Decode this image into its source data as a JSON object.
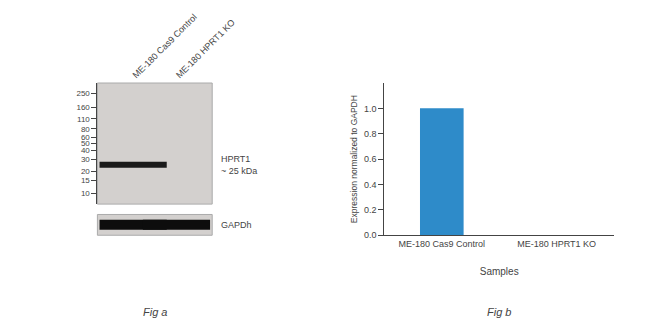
{
  "chart_data": [
    {
      "type": "western_blot",
      "title": "Fig a",
      "categories": [
        "ME-180 Cas9 Control",
        "ME-180 HPRT1 KO"
      ],
      "log": "y",
      "ylim": [
        7,
        350
      ],
      "yticks": [
        250,
        160,
        110,
        80,
        60,
        50,
        40,
        30,
        20,
        15,
        10
      ],
      "color": "#d3d0ce",
      "series": [
        {
          "name": "HPRT1\n~ 25 kDa",
          "values": [
            25,
            null
          ],
          "color": "#1a1a1a"
        }
      ],
      "loading_control": {
        "name": "GAPDh",
        "present": [
          true,
          true
        ],
        "color": "#0d0d0d"
      }
    },
    {
      "type": "bar",
      "title": "Fig b",
      "categories": [
        "ME-180 Cas9 Control",
        "ME-180 HPRT1 KO"
      ],
      "values": [
        1.0,
        0.0
      ],
      "color": "#2e8bc9",
      "xlabel": "Samples",
      "ylabel": "Expression normalized to GAPDH",
      "ylim": [
        0,
        1.2
      ],
      "yticks": [
        {
          "value": 0,
          "label": "0.0"
        },
        0.2,
        0.4,
        0.6,
        0.8,
        {
          "value": 1.0,
          "label": "1.0"
        }
      ],
      "grid": false
    }
  ]
}
